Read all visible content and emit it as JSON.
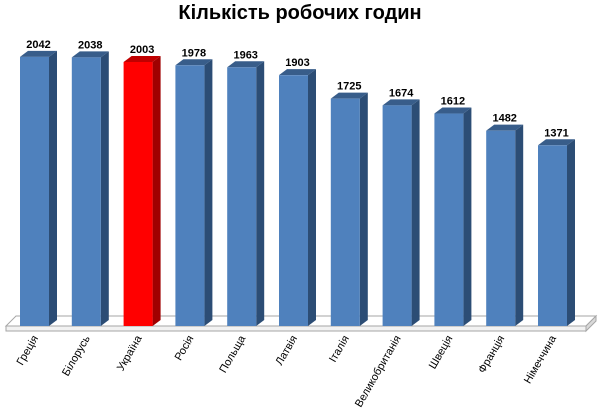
{
  "chart_data": {
    "type": "bar",
    "title": "Кількість робочих годин",
    "categories": [
      "Греція",
      "Білорусь",
      "Україна",
      "Росія",
      "Польща",
      "Латвія",
      "Італія",
      "Великобританія",
      "Швеція",
      "Франція",
      "Німеччина"
    ],
    "values": [
      2042,
      2038,
      2003,
      1978,
      1963,
      1903,
      1725,
      1674,
      1612,
      1482,
      1371
    ],
    "highlight_category": "Україна",
    "colors": {
      "bar_front": "#4f81bd",
      "bar_side": "#2c4d75",
      "bar_top": "#385d8a",
      "highlight_front": "#ff0000",
      "highlight_side": "#a00000",
      "highlight_top": "#c00000",
      "floor": "#ffffff",
      "floor_stroke": "#a6a6a6"
    },
    "ylim": [
      0,
      2100
    ],
    "grid": false,
    "legend": "none",
    "xlabel": "",
    "ylabel": ""
  }
}
